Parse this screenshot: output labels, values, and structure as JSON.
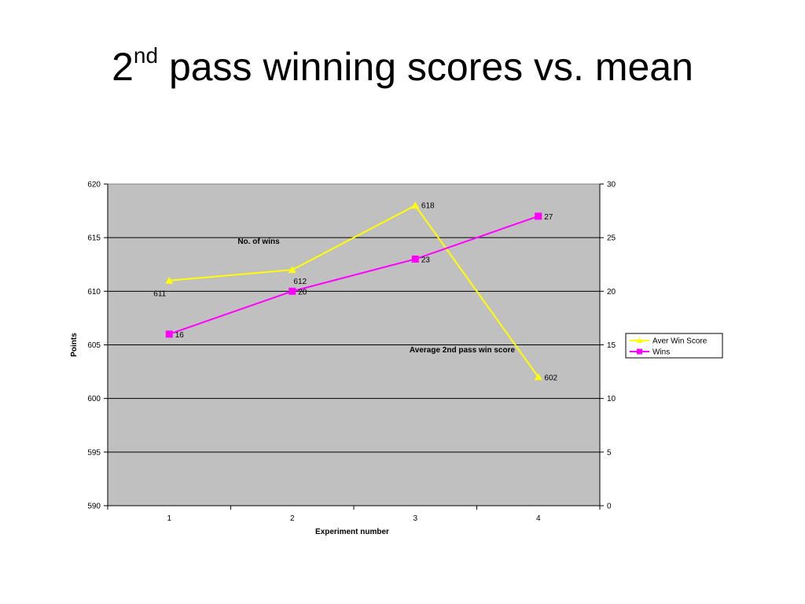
{
  "slide": {
    "title_base": "2",
    "title_sup": "nd",
    "title_rest": " pass winning scores vs. mean"
  },
  "chart_data": {
    "type": "line",
    "categories": [
      "1",
      "2",
      "3",
      "4"
    ],
    "xlabel": "Experiment number",
    "ylabel": "Points",
    "ylim": [
      590,
      620
    ],
    "y_ticks": [
      "590",
      "595",
      "600",
      "605",
      "610",
      "615",
      "620"
    ],
    "y2lim": [
      0,
      30
    ],
    "y2_ticks": [
      "0",
      "5",
      "10",
      "15",
      "20",
      "25",
      "30"
    ],
    "grid": true,
    "legend_position": "right",
    "plot_background": "#c0c0c0",
    "series": [
      {
        "name": "Aver Win Score",
        "axis": "left",
        "values": [
          611,
          612,
          618,
          602
        ],
        "labels": [
          "611",
          "612",
          "618",
          "602"
        ],
        "color": "#ffff00",
        "marker": "triangle"
      },
      {
        "name": "Wins",
        "axis": "right",
        "values": [
          16,
          20,
          23,
          27
        ],
        "labels": [
          "16",
          "20",
          "23",
          "27"
        ],
        "color": "#ff00ff",
        "marker": "square"
      }
    ],
    "annotations": [
      {
        "text": "No. of wins"
      },
      {
        "text": "Average 2nd pass win score"
      }
    ]
  }
}
